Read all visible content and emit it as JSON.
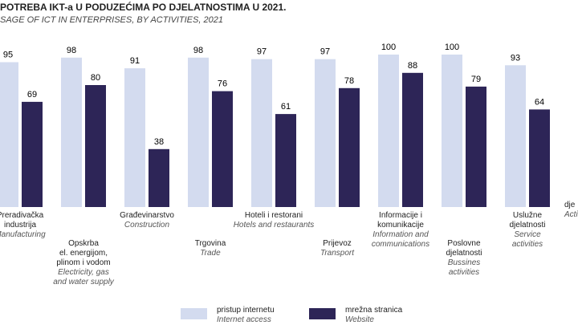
{
  "chart_data": {
    "type": "bar",
    "title": "POTREBA IKT-a U PODUZEĆIMA PO DJELATNOSTIMA U 2021.",
    "subtitle": "SAGE OF ICT IN ENTERPRISES, BY ACTIVITIES, 2021",
    "x_label": "dje",
    "x_label_en": "Acti",
    "categories": [
      "Preradivačka\nindustrija",
      "Opskrba\nel. energijom,\nplinom i vodom",
      "Građevinarstvo",
      "Trgovina",
      "Hoteli i restorani",
      "Prijevoz",
      "Informacije i\nkomunikacije",
      "Poslovne\ndjelatnosti",
      "Uslužne\ndjelatnosti"
    ],
    "categories_en": [
      "Manufacturing",
      "Electricity, gas\nand water supply",
      "Construction",
      "Trade",
      "Hotels and restaurants",
      "Transport",
      "Information and\ncommunications",
      "Bussines\nactivities",
      "Service\nactivities"
    ],
    "series": [
      {
        "name": "pristup internetu",
        "name_en": "Internet access",
        "color": "#d3dbef",
        "values": [
          95,
          98,
          91,
          98,
          97,
          97,
          100,
          100,
          93
        ]
      },
      {
        "name": "mrežna stranica",
        "name_en": "Website",
        "color": "#2d2557",
        "values": [
          69,
          80,
          38,
          76,
          61,
          78,
          88,
          79,
          64
        ]
      }
    ],
    "ylim": [
      0,
      100
    ]
  }
}
